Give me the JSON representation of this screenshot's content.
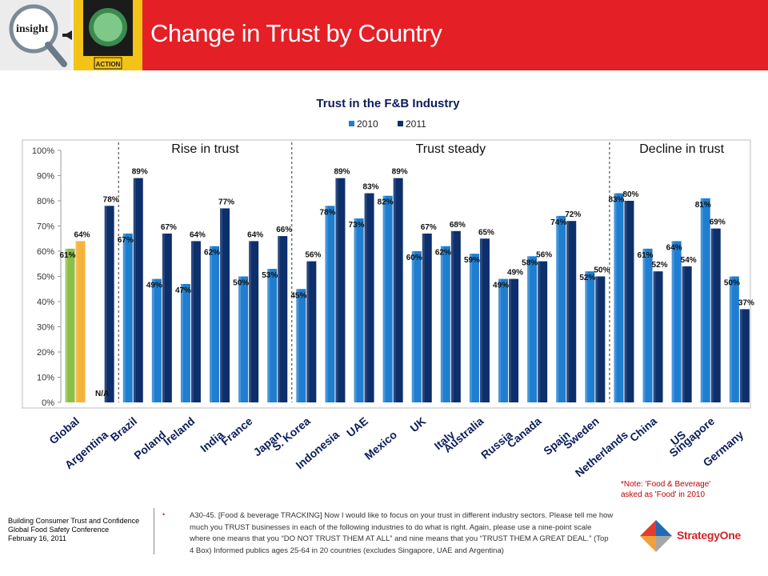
{
  "header": {
    "title": "Change in Trust by Country",
    "logo_text": "insight",
    "sign_text": "ACTION",
    "bg_color": "#e41f26"
  },
  "chart_data": {
    "type": "bar",
    "title": "Trust in the F&B Industry",
    "legend": [
      "2010",
      "2011"
    ],
    "legend_position": "top-center",
    "ylim": [
      0,
      100
    ],
    "yticks": [
      "0%",
      "10%",
      "20%",
      "30%",
      "40%",
      "50%",
      "60%",
      "70%",
      "80%",
      "90%",
      "100%"
    ],
    "categories": [
      "Global",
      "Argentina",
      "Brazil",
      "Poland",
      "Ireland",
      "India",
      "France",
      "Japan",
      "S. Korea",
      "Indonesia",
      "UAE",
      "Mexico",
      "UK",
      "Italy",
      "Australia",
      "Russia",
      "Canada",
      "Spain",
      "Sweden",
      "Netherlands",
      "China",
      "US",
      "Singapore",
      "Germany"
    ],
    "series": [
      {
        "name": "2010",
        "values": [
          61,
          null,
          67,
          49,
          47,
          62,
          50,
          53,
          45,
          78,
          73,
          82,
          60,
          62,
          59,
          49,
          58,
          74,
          52,
          83,
          61,
          64,
          81,
          50
        ]
      },
      {
        "name": "2011",
        "values": [
          64,
          78,
          89,
          67,
          64,
          77,
          64,
          66,
          56,
          89,
          83,
          89,
          67,
          68,
          65,
          49,
          56,
          72,
          50,
          80,
          52,
          54,
          69,
          37
        ]
      }
    ],
    "data_labels": {
      "2010": [
        "61%",
        "N/A",
        "67%",
        "49%",
        "47%",
        "62%",
        "50%",
        "53%",
        "45%",
        "78%",
        "73%",
        "82%",
        "60%",
        "62%",
        "59%",
        "49%",
        "58%",
        "74%",
        "52%",
        "83%",
        "61%",
        "64%",
        "81%",
        "50%"
      ],
      "2011": [
        "64%",
        "78%",
        "89%",
        "67%",
        "64%",
        "77%",
        "64%",
        "66%",
        "56%",
        "89%",
        "83%",
        "89%",
        "67%",
        "68%",
        "65%",
        "49%",
        "56%",
        "72%",
        "50%",
        "80%",
        "52%",
        "54%",
        "69%",
        "37%"
      ]
    },
    "groups": [
      {
        "label": "Rise in trust",
        "from": 2,
        "to": 7
      },
      {
        "label": "Trust steady",
        "from": 8,
        "to": 18
      },
      {
        "label": "Decline in trust",
        "from": 19,
        "to": 23
      }
    ],
    "colors": {
      "2010": "#1f7ed0",
      "2011": "#0d2f6b",
      "global_2010": "#8cbf4a",
      "global_2011": "#f4b43c"
    }
  },
  "note": {
    "line1": "*Note: 'Food & Beverage'",
    "line2": "asked as 'Food' in 2010"
  },
  "conference": {
    "line1": "Building Consumer Trust and Confidence",
    "line2": "Global Food Safety Conference",
    "line3": "February 16, 2011"
  },
  "footnote": {
    "bullet": "•",
    "text": "A30-45. [Food & beverage TRACKING] Now I would like to focus on your trust in different industry sectors. Please tell me how much you TRUST businesses in each of the following industries to do what is right. Again, please use a nine-point scale where one means that you “DO NOT TRUST THEM AT ALL” and nine means that you “TRUST THEM A GREAT DEAL.” (Top 4 Box) Informed publics ages 25-64 in 20 countries (excludes Singapore, UAE and Argentina)"
  },
  "brand": {
    "name": "StrategyOne"
  }
}
